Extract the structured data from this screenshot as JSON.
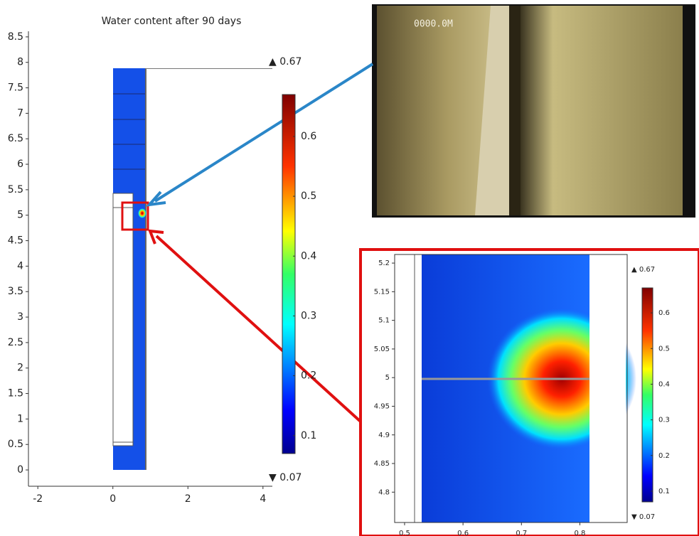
{
  "chart_data": [
    {
      "type": "heatmap",
      "title": "Water content after 90 days",
      "xlim": [
        -2.25,
        4.25
      ],
      "ylim": [
        -0.32,
        8.61
      ],
      "xticks": [
        -2,
        0,
        2,
        4
      ],
      "yticks": [
        0,
        0.5,
        1,
        1.5,
        2,
        2.5,
        3,
        3.5,
        4,
        4.5,
        5,
        5.5,
        6,
        6.5,
        7,
        7.5,
        8,
        8.5
      ],
      "clim": [
        {
          "value": 0.07,
          "label": "▼ 0.07"
        },
        {
          "value": 0.67,
          "label": "▲ 0.67"
        }
      ],
      "cticks": [
        0.1,
        0.2,
        0.3,
        0.4,
        0.5,
        0.6
      ]
    },
    {
      "type": "heatmap",
      "xlim": [
        0.483,
        0.881
      ],
      "ylim": [
        4.747,
        5.215
      ],
      "xticks": [
        0.5,
        0.6,
        0.7,
        0.8
      ],
      "yticks": [
        4.8,
        4.85,
        4.9,
        4.95,
        5,
        5.05,
        5.1,
        5.15,
        5.2
      ],
      "clim": [
        {
          "value": 0.07,
          "label": "▼ 0.07"
        },
        {
          "value": 0.67,
          "label": "▲ 0.67"
        }
      ],
      "cticks": [
        0.1,
        0.2,
        0.3,
        0.4,
        0.5,
        0.6
      ]
    }
  ],
  "photo": {
    "overlay": "0000.0M"
  }
}
